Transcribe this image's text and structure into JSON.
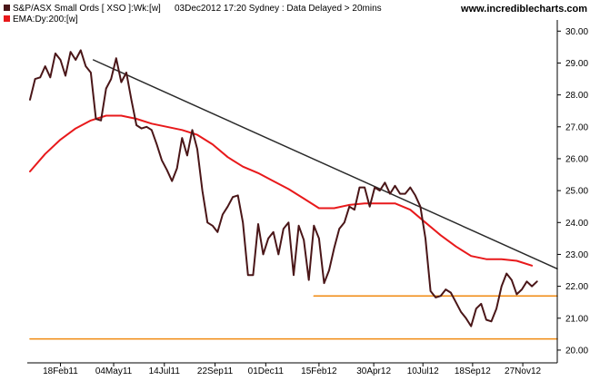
{
  "header": {
    "series_label": "S&P/ASX Small Ords [ XSO ]:Wk:[w]",
    "info": "03Dec2012 17:20 Sydney : Data Delayed > 20mins",
    "ema_label": "EMA:Dy:200:[w]",
    "site": "www.incrediblecharts.com"
  },
  "chart_data": {
    "type": "line",
    "title": "S&P/ASX Small Ords [ XSO ]:Wk:[w]",
    "x_tick_labels": [
      "18Feb11",
      "04May11",
      "14Jul11",
      "22Sep11",
      "01Dec11",
      "15Feb12",
      "30Apr12",
      "10Jul12",
      "18Sep12",
      "27Nov12"
    ],
    "x_tick_index": [
      6,
      16.5,
      26.5,
      36.5,
      46.5,
      57,
      67.8,
      77.5,
      87.3,
      97.2
    ],
    "y_ticks": [
      20,
      21,
      22,
      23,
      24,
      25,
      26,
      27,
      28,
      29,
      30
    ],
    "y_tick_labels": [
      "20.00",
      "21.00",
      "22.00",
      "23.00",
      "24.00",
      "25.00",
      "26.00",
      "27.00",
      "28.00",
      "29.00",
      "30.00"
    ],
    "ylim": [
      19.6,
      30.35
    ],
    "x_range": [
      0,
      104
    ],
    "grid": false,
    "colors": {
      "price": "#4a1618",
      "ema": "#e8191b",
      "trendline": "#2a2a2a",
      "support": "#f08a10",
      "axis": "#000000"
    },
    "series": [
      {
        "name": "S&P/ASX Small Ords [ XSO ]:Wk:[w]",
        "style": "price",
        "x": [
          0,
          1,
          2,
          3,
          4,
          5,
          6,
          7,
          8,
          9,
          10,
          11,
          12,
          13,
          14,
          15,
          16,
          17,
          18,
          19,
          20,
          21,
          22,
          23,
          24,
          25,
          26,
          27,
          28,
          29,
          30,
          31,
          32,
          33,
          34,
          35,
          36,
          37,
          38,
          39,
          40,
          41,
          42,
          43,
          44,
          45,
          46,
          47,
          48,
          49,
          50,
          51,
          52,
          53,
          54,
          55,
          56,
          57,
          58,
          59,
          60,
          61,
          62,
          63,
          64,
          65,
          66,
          67,
          68,
          69,
          70,
          71,
          72,
          73,
          74,
          75,
          76,
          77,
          78,
          79,
          80,
          81,
          82,
          83,
          84,
          85,
          86,
          87,
          88,
          89,
          90,
          91,
          92,
          93,
          94,
          95,
          96,
          97,
          98,
          99,
          100
        ],
        "values": [
          27.85,
          28.5,
          28.55,
          28.9,
          28.55,
          29.3,
          29.1,
          28.6,
          29.35,
          29.1,
          29.4,
          28.9,
          28.7,
          27.25,
          27.2,
          28.2,
          28.5,
          29.15,
          28.4,
          28.7,
          27.85,
          27.05,
          26.95,
          27.0,
          26.9,
          26.45,
          25.95,
          25.65,
          25.3,
          25.7,
          26.65,
          26.1,
          26.9,
          26.3,
          25.0,
          24.0,
          23.9,
          23.7,
          24.25,
          24.5,
          24.8,
          24.85,
          24.0,
          22.35,
          22.35,
          23.95,
          23.0,
          23.5,
          23.7,
          23.0,
          23.8,
          24.0,
          22.35,
          23.9,
          23.45,
          22.2,
          23.9,
          23.5,
          22.1,
          22.5,
          23.2,
          23.8,
          24.0,
          24.5,
          24.4,
          25.1,
          25.1,
          24.5,
          25.1,
          25.0,
          25.25,
          24.9,
          25.15,
          24.9,
          24.9,
          25.1,
          24.85,
          24.5,
          23.5,
          21.85,
          21.65,
          21.7,
          21.9,
          21.8,
          21.5,
          21.2,
          21.0,
          20.75,
          21.3,
          21.45,
          20.95,
          20.9,
          21.3,
          22.0,
          22.4,
          22.2,
          21.75,
          21.9,
          22.15,
          22.0,
          22.15
        ]
      },
      {
        "name": "EMA:Dy:200:[w]",
        "style": "ema",
        "x": [
          0,
          3,
          6,
          9,
          12,
          15,
          18,
          21,
          24,
          27,
          30,
          33,
          36,
          39,
          42,
          45,
          48,
          51,
          54,
          57,
          60,
          63,
          66,
          69,
          72,
          75,
          78,
          81,
          84,
          87,
          90,
          93,
          96,
          99
        ],
        "values": [
          25.6,
          26.15,
          26.6,
          26.95,
          27.2,
          27.35,
          27.35,
          27.25,
          27.1,
          27.0,
          26.9,
          26.75,
          26.45,
          26.05,
          25.75,
          25.55,
          25.3,
          25.05,
          24.75,
          24.45,
          24.45,
          24.55,
          24.6,
          24.6,
          24.6,
          24.4,
          24.0,
          23.6,
          23.25,
          22.95,
          22.85,
          22.85,
          22.8,
          22.65
        ]
      },
      {
        "name": "Trendline",
        "style": "trendline",
        "x": [
          12.5,
          104
        ],
        "values": [
          29.1,
          22.55
        ]
      },
      {
        "name": "Support 21.70",
        "style": "support",
        "x": [
          56,
          104
        ],
        "values": [
          21.7,
          21.7
        ]
      },
      {
        "name": "Support 20.35",
        "style": "support",
        "x": [
          0,
          104
        ],
        "values": [
          20.35,
          20.35
        ]
      }
    ]
  }
}
